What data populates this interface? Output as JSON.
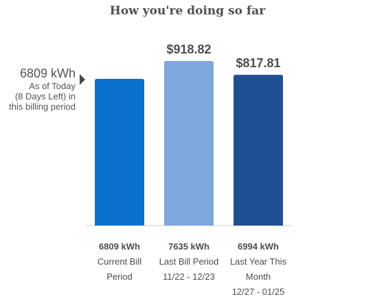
{
  "title": "How you're doing so far",
  "current": {
    "kwh_label": "6809 kWh",
    "note_lines": [
      "As of Today",
      "(8 Days Left) in",
      "this billing period"
    ]
  },
  "chart_data": {
    "type": "bar",
    "title": "How you're doing so far",
    "categories": [
      "Current Bill Period",
      "Last Bill Period 11/22 - 12/23",
      "Last Year This Month 12/27 - 01/25"
    ],
    "values": [
      6809,
      7635,
      6994
    ],
    "unit": "kWh",
    "kwh_labels": [
      "6809 kWh",
      "7635 kWh",
      "6994 kWh"
    ],
    "cost_labels": [
      "",
      "$918.82",
      "$817.81"
    ],
    "category_lines": [
      [
        "Current Bill",
        "Period"
      ],
      [
        "Last Bill Period",
        "11/22 - 12/23"
      ],
      [
        "Last Year This",
        "Month",
        "12/27 - 01/25"
      ]
    ],
    "colors": [
      "#0b71cf",
      "#7da7dd",
      "#1f4f92"
    ],
    "marker_color": "#4a4a4a",
    "axis_color": "#cccccc",
    "cost_color": "#4d4d4d"
  }
}
